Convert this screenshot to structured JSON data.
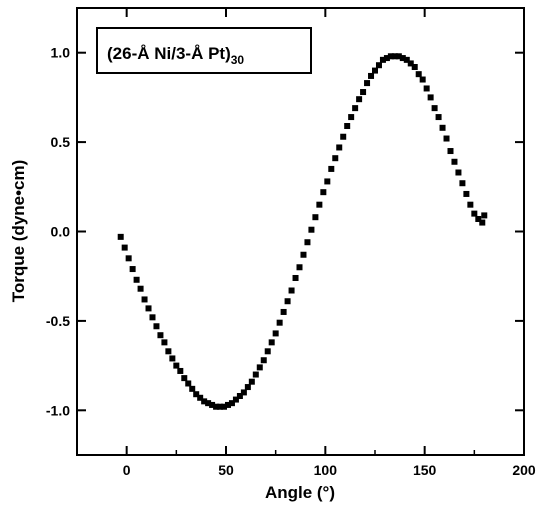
{
  "chart_data": {
    "type": "scatter",
    "legend_label": "(26-Å Ni/3-Å Pt)",
    "legend_label_subscript": "30",
    "xlabel": "Angle (°)",
    "ylabel": "Torque (dyne•cm)",
    "xlim": [
      -25,
      200
    ],
    "ylim": [
      -1.25,
      1.25
    ],
    "xticks": [
      0,
      50,
      100,
      150,
      200
    ],
    "xtick_labels": [
      "0",
      "50",
      "100",
      "150",
      "200"
    ],
    "yticks": [
      -1.0,
      -0.5,
      0.0,
      0.5,
      1.0
    ],
    "ytick_labels": [
      "-1.0",
      "-0.5",
      "0.0",
      "0.5",
      "1.0"
    ],
    "grid": false,
    "legend_position": "top-left",
    "marker_color": "#000000",
    "series": [
      {
        "x": [
          -3,
          -1,
          1,
          3,
          5,
          7,
          9,
          11,
          13,
          15,
          17,
          19,
          21,
          23,
          25,
          27,
          29,
          31,
          33,
          35,
          37,
          39,
          41,
          43,
          45,
          47,
          49,
          51,
          53,
          55,
          57,
          59,
          61,
          63,
          65,
          67,
          69,
          71,
          73,
          75,
          77,
          79,
          81,
          83,
          85,
          87,
          89,
          91,
          93,
          95,
          97,
          99,
          101,
          103,
          105,
          107,
          109,
          111,
          113,
          115,
          117,
          119,
          121,
          123,
          125,
          127,
          129,
          131,
          133,
          135,
          137,
          139,
          141,
          143,
          145,
          147,
          149,
          151,
          153,
          155,
          157,
          159,
          161,
          163,
          165,
          167,
          169,
          171,
          173,
          175,
          177,
          179,
          180
        ],
        "y": [
          -0.03,
          -0.09,
          -0.15,
          -0.21,
          -0.27,
          -0.32,
          -0.38,
          -0.43,
          -0.48,
          -0.53,
          -0.58,
          -0.62,
          -0.67,
          -0.71,
          -0.75,
          -0.78,
          -0.82,
          -0.85,
          -0.88,
          -0.91,
          -0.93,
          -0.95,
          -0.96,
          -0.97,
          -0.98,
          -0.98,
          -0.98,
          -0.97,
          -0.96,
          -0.94,
          -0.92,
          -0.9,
          -0.87,
          -0.84,
          -0.8,
          -0.76,
          -0.72,
          -0.67,
          -0.62,
          -0.57,
          -0.51,
          -0.45,
          -0.39,
          -0.33,
          -0.26,
          -0.2,
          -0.13,
          -0.06,
          0.01,
          0.08,
          0.15,
          0.22,
          0.28,
          0.35,
          0.41,
          0.47,
          0.53,
          0.59,
          0.64,
          0.69,
          0.74,
          0.78,
          0.83,
          0.87,
          0.9,
          0.93,
          0.96,
          0.97,
          0.98,
          0.98,
          0.98,
          0.97,
          0.96,
          0.94,
          0.92,
          0.88,
          0.85,
          0.8,
          0.75,
          0.69,
          0.64,
          0.58,
          0.52,
          0.45,
          0.39,
          0.33,
          0.27,
          0.21,
          0.15,
          0.1,
          0.07,
          0.05,
          0.09
        ]
      }
    ]
  }
}
